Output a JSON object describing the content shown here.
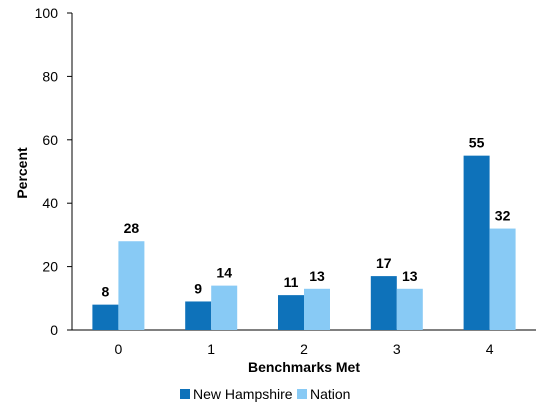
{
  "chart_data": {
    "type": "bar",
    "categories": [
      "0",
      "1",
      "2",
      "3",
      "4"
    ],
    "series": [
      {
        "name": "New Hampshire",
        "values": [
          8,
          9,
          11,
          17,
          55
        ],
        "color": "#0e72ba"
      },
      {
        "name": "Nation",
        "values": [
          28,
          14,
          13,
          13,
          32
        ],
        "color": "#88caf5"
      }
    ],
    "xlabel": "Benchmarks Met",
    "ylabel": "Percent",
    "ylim": [
      0,
      100
    ],
    "yticks": [
      0,
      20,
      40,
      60,
      80,
      100
    ],
    "grid": false,
    "data_labels": true,
    "legend_position": "bottom"
  }
}
